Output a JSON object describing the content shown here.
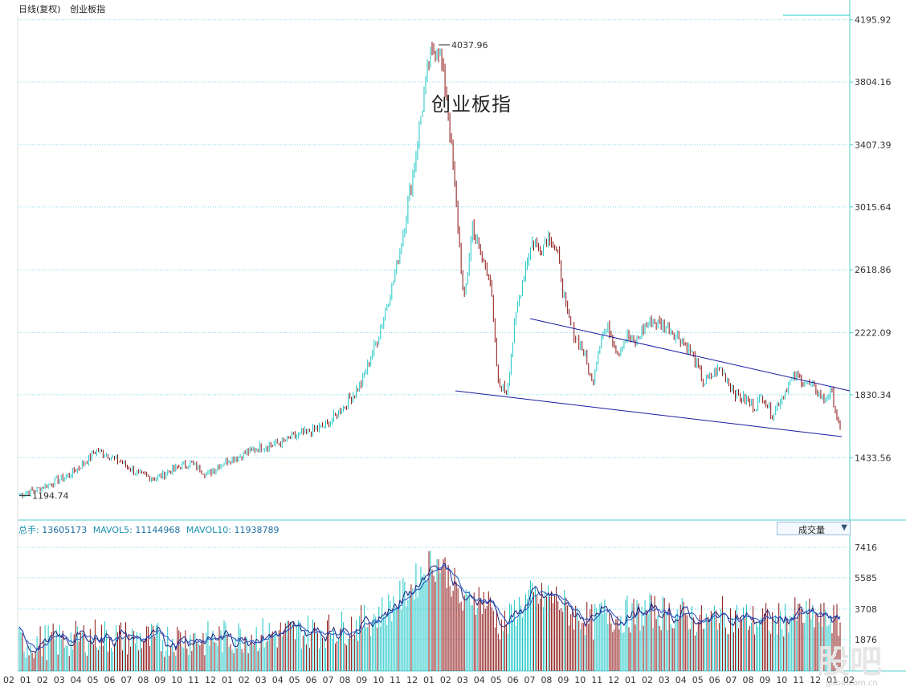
{
  "header": {
    "period": "日线(复权)",
    "name": "创业板指"
  },
  "chart_title": "创业板指",
  "volume_panel": {
    "legend": [
      {
        "key": "总手:",
        "value": "13605173"
      },
      {
        "key": "MAVOL5:",
        "value": "11144968"
      },
      {
        "key": "MAVOL10:",
        "value": "11938789"
      }
    ],
    "selector_label": "成交量",
    "selector_arrow": "▼"
  },
  "watermark": "股吧",
  "watermark_sub": "guba.com.cn",
  "colors": {
    "up": "#1cc6c6",
    "down": "#8b1010",
    "grid": "#7dd8e8",
    "trend": "#1a1aa0",
    "ma1": "#202080",
    "ma2": "#2050c0",
    "axis": "#5cc"
  },
  "chart_data": [
    {
      "type": "candlestick",
      "ylim": [
        1040,
        4230
      ],
      "y_ticks": [
        "4195.92",
        "3804.16",
        "3407.39",
        "3015.64",
        "2618.86",
        "2222.09",
        "1830.34",
        "1433.56"
      ],
      "annotations": [
        {
          "text": "4037.96",
          "x": "2015-06",
          "y": 4037.96
        },
        {
          "text": "1194.74",
          "x": "2013-02",
          "y": 1194.74
        }
      ],
      "x_ticks": [
        "02",
        "01",
        "02",
        "03",
        "04",
        "05",
        "06",
        "07",
        "08",
        "09",
        "10",
        "11",
        "12",
        "01",
        "02",
        "03",
        "04",
        "05",
        "06",
        "07",
        "08",
        "09",
        "10",
        "11",
        "12",
        "01",
        "02",
        "03",
        "04",
        "05",
        "06",
        "07",
        "08",
        "09",
        "10",
        "11",
        "12",
        "01",
        "02",
        "03",
        "04",
        "05",
        "06",
        "07",
        "08",
        "09",
        "10",
        "11",
        "12",
        "01",
        "02"
      ],
      "series_close_path": [
        [
          0,
          1200
        ],
        [
          2,
          1230
        ],
        [
          4,
          1280
        ],
        [
          6,
          1330
        ],
        [
          8,
          1420
        ],
        [
          9,
          1480
        ],
        [
          10,
          1460
        ],
        [
          12,
          1400
        ],
        [
          14,
          1330
        ],
        [
          16,
          1300
        ],
        [
          18,
          1360
        ],
        [
          20,
          1400
        ],
        [
          22,
          1330
        ],
        [
          24,
          1410
        ],
        [
          26,
          1450
        ],
        [
          28,
          1500
        ],
        [
          30,
          1520
        ],
        [
          32,
          1560
        ],
        [
          34,
          1600
        ],
        [
          36,
          1640
        ],
        [
          38,
          1760
        ],
        [
          40,
          1900
        ],
        [
          42,
          2200
        ],
        [
          44,
          2600
        ],
        [
          46,
          3200
        ],
        [
          47,
          3600
        ],
        [
          48,
          3950
        ],
        [
          49,
          4037
        ],
        [
          50,
          3700
        ],
        [
          51,
          3100
        ],
        [
          52,
          2400
        ],
        [
          53,
          2900
        ],
        [
          54,
          2700
        ],
        [
          55,
          2600
        ],
        [
          56,
          1900
        ],
        [
          57,
          1850
        ],
        [
          58,
          2300
        ],
        [
          59,
          2600
        ],
        [
          60,
          2800
        ],
        [
          61,
          2750
        ],
        [
          62,
          2850
        ],
        [
          63,
          2700
        ],
        [
          64,
          2350
        ],
        [
          65,
          2200
        ],
        [
          66,
          2100
        ],
        [
          67,
          1900
        ],
        [
          68,
          2200
        ],
        [
          69,
          2250
        ],
        [
          70,
          2100
        ],
        [
          71,
          2200
        ],
        [
          72,
          2150
        ],
        [
          73,
          2250
        ],
        [
          74,
          2300
        ],
        [
          75,
          2270
        ],
        [
          76,
          2250
        ],
        [
          77,
          2200
        ],
        [
          78,
          2150
        ],
        [
          79,
          2050
        ],
        [
          80,
          1900
        ],
        [
          81,
          1950
        ],
        [
          82,
          2000
        ],
        [
          83,
          1900
        ],
        [
          84,
          1820
        ],
        [
          85,
          1800
        ],
        [
          86,
          1750
        ],
        [
          87,
          1830
        ],
        [
          88,
          1700
        ],
        [
          89,
          1800
        ],
        [
          90,
          1900
        ],
        [
          91,
          1950
        ],
        [
          92,
          1900
        ],
        [
          93,
          1870
        ],
        [
          94,
          1800
        ],
        [
          95,
          1850
        ],
        [
          96,
          1600
        ]
      ],
      "trendlines": [
        {
          "from": [
            "2016-08",
            2290
          ],
          "to": [
            "2019-03",
            1840
          ]
        },
        {
          "from": [
            "2016-01",
            1855
          ],
          "to": [
            "2019-03",
            1565
          ]
        }
      ]
    },
    {
      "type": "bar",
      "title": "成交量",
      "ylim": [
        0,
        7900
      ],
      "y_ticks": [
        "7416",
        "5585",
        "3708",
        "1876"
      ],
      "series": [
        {
          "name": "MAVOL5",
          "values": []
        },
        {
          "name": "MAVOL10",
          "values": []
        }
      ]
    }
  ]
}
